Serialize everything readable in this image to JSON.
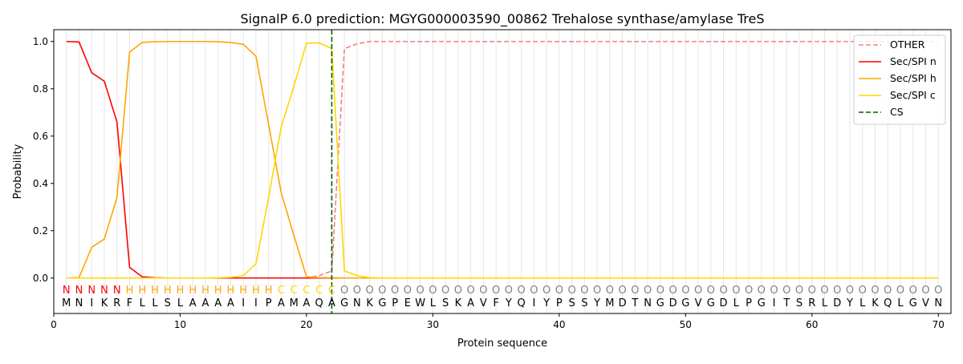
{
  "chart_data": {
    "type": "line",
    "title": "SignalP 6.0 prediction: MGYG000003590_00862 Trehalose synthase/amylase TreS",
    "xlabel": "Protein sequence",
    "ylabel": "Probability",
    "xlim": [
      0,
      71
    ],
    "ylim": [
      -0.15,
      1.05
    ],
    "xticks": [
      0,
      10,
      20,
      30,
      40,
      50,
      60,
      70
    ],
    "xtick_labels": [
      "0",
      "10",
      "20",
      "30",
      "40",
      "50",
      "60",
      "70"
    ],
    "yticks": [
      0.0,
      0.2,
      0.4,
      0.6,
      0.8,
      1.0
    ],
    "ytick_labels": [
      "0.0",
      "0.2",
      "0.4",
      "0.6",
      "0.8",
      "1.0"
    ],
    "grid": "vertical lines at each residue",
    "legend_position": "top-right",
    "x": [
      1,
      2,
      3,
      4,
      5,
      6,
      7,
      8,
      9,
      10,
      11,
      12,
      13,
      14,
      15,
      16,
      17,
      18,
      19,
      20,
      21,
      22,
      23,
      24,
      25,
      26,
      27,
      28,
      29,
      30,
      31,
      32,
      33,
      34,
      35,
      36,
      37,
      38,
      39,
      40,
      41,
      42,
      43,
      44,
      45,
      46,
      47,
      48,
      49,
      50,
      51,
      52,
      53,
      54,
      55,
      56,
      57,
      58,
      59,
      60,
      61,
      62,
      63,
      64,
      65,
      66,
      67,
      68,
      69,
      70
    ],
    "series": [
      {
        "name": "OTHER",
        "color": "#f08080",
        "dash": "dashed",
        "values": [
          0,
          0,
          0,
          0,
          0,
          0,
          0,
          0,
          0,
          0,
          0,
          0,
          0,
          0,
          0,
          0,
          0,
          0,
          0,
          0,
          0.01,
          0.03,
          0.97,
          0.99,
          1,
          1,
          1,
          1,
          1,
          1,
          1,
          1,
          1,
          1,
          1,
          1,
          1,
          1,
          1,
          1,
          1,
          1,
          1,
          1,
          1,
          1,
          1,
          1,
          1,
          1,
          1,
          1,
          1,
          1,
          1,
          1,
          1,
          1,
          1,
          1,
          1,
          1,
          1,
          1,
          1,
          1,
          1,
          1,
          1,
          1
        ]
      },
      {
        "name": "Sec/SPI n",
        "color": "#ff0000",
        "dash": "solid",
        "values": [
          1.0,
          0.998,
          0.868,
          0.832,
          0.66,
          0.045,
          0.005,
          0.001,
          0,
          0,
          0,
          0,
          0,
          0,
          0,
          0,
          0,
          0,
          0,
          0,
          0,
          0,
          0,
          0,
          0,
          0,
          0,
          0,
          0,
          0,
          0,
          0,
          0,
          0,
          0,
          0,
          0,
          0,
          0,
          0,
          0,
          0,
          0,
          0,
          0,
          0,
          0,
          0,
          0,
          0,
          0,
          0,
          0,
          0,
          0,
          0,
          0,
          0,
          0,
          0,
          0,
          0,
          0,
          0,
          0,
          0,
          0,
          0,
          0,
          0
        ]
      },
      {
        "name": "Sec/SPI h",
        "color": "#ffa500",
        "dash": "solid",
        "values": [
          0,
          0.002,
          0.13,
          0.165,
          0.34,
          0.955,
          0.996,
          0.999,
          1.0,
          1.0,
          1.0,
          1.0,
          0.999,
          0.996,
          0.988,
          0.938,
          0.65,
          0.36,
          0.18,
          0.005,
          0.002,
          0.001,
          0,
          0,
          0,
          0,
          0,
          0,
          0,
          0,
          0,
          0,
          0,
          0,
          0,
          0,
          0,
          0,
          0,
          0,
          0,
          0,
          0,
          0,
          0,
          0,
          0,
          0,
          0,
          0,
          0,
          0,
          0,
          0,
          0,
          0,
          0,
          0,
          0,
          0,
          0,
          0,
          0,
          0,
          0,
          0,
          0,
          0,
          0,
          0
        ]
      },
      {
        "name": "Sec/SPI c",
        "color": "#ffd700",
        "dash": "solid",
        "values": [
          0,
          0,
          0,
          0,
          0,
          0,
          0,
          0,
          0,
          0,
          0,
          0,
          0.001,
          0.003,
          0.01,
          0.06,
          0.34,
          0.64,
          0.81,
          0.993,
          0.994,
          0.97,
          0.03,
          0.01,
          0.002,
          0,
          0,
          0,
          0,
          0,
          0,
          0,
          0,
          0,
          0,
          0,
          0,
          0,
          0,
          0,
          0,
          0,
          0,
          0,
          0,
          0,
          0,
          0,
          0,
          0,
          0,
          0,
          0,
          0,
          0,
          0,
          0,
          0,
          0,
          0,
          0,
          0,
          0,
          0,
          0,
          0,
          0,
          0,
          0,
          0
        ]
      }
    ],
    "cs": {
      "name": "CS",
      "x": 22,
      "color": "#006400",
      "dash": "dashed"
    },
    "region_labels": [
      "N",
      "N",
      "N",
      "N",
      "N",
      "H",
      "H",
      "H",
      "H",
      "H",
      "H",
      "H",
      "H",
      "H",
      "H",
      "H",
      "H",
      "C",
      "C",
      "C",
      "C",
      "C",
      "O",
      "O",
      "O",
      "O",
      "O",
      "O",
      "O",
      "O",
      "O",
      "O",
      "O",
      "O",
      "O",
      "O",
      "O",
      "O",
      "O",
      "O",
      "O",
      "O",
      "O",
      "O",
      "O",
      "O",
      "O",
      "O",
      "O",
      "O",
      "O",
      "O",
      "O",
      "O",
      "O",
      "O",
      "O",
      "O",
      "O",
      "O",
      "O",
      "O",
      "O",
      "O",
      "O",
      "O",
      "O",
      "O",
      "O",
      "O"
    ],
    "region_colors": {
      "N": "#ff0000",
      "H": "#ffa500",
      "C": "#ffd700",
      "O": "#808080"
    },
    "sequence": [
      "M",
      "N",
      "I",
      "K",
      "R",
      "F",
      "L",
      "L",
      "S",
      "L",
      "A",
      "A",
      "A",
      "A",
      "I",
      "I",
      "P",
      "A",
      "M",
      "A",
      "Q",
      "A",
      "G",
      "N",
      "K",
      "G",
      "P",
      "E",
      "W",
      "L",
      "S",
      "K",
      "A",
      "V",
      "F",
      "Y",
      "Q",
      "I",
      "Y",
      "P",
      "S",
      "S",
      "Y",
      "M",
      "D",
      "T",
      "N",
      "G",
      "D",
      "G",
      "V",
      "G",
      "D",
      "L",
      "P",
      "G",
      "I",
      "T",
      "S",
      "R",
      "L",
      "D",
      "Y",
      "L",
      "K",
      "Q",
      "L",
      "G",
      "V",
      "N"
    ]
  }
}
